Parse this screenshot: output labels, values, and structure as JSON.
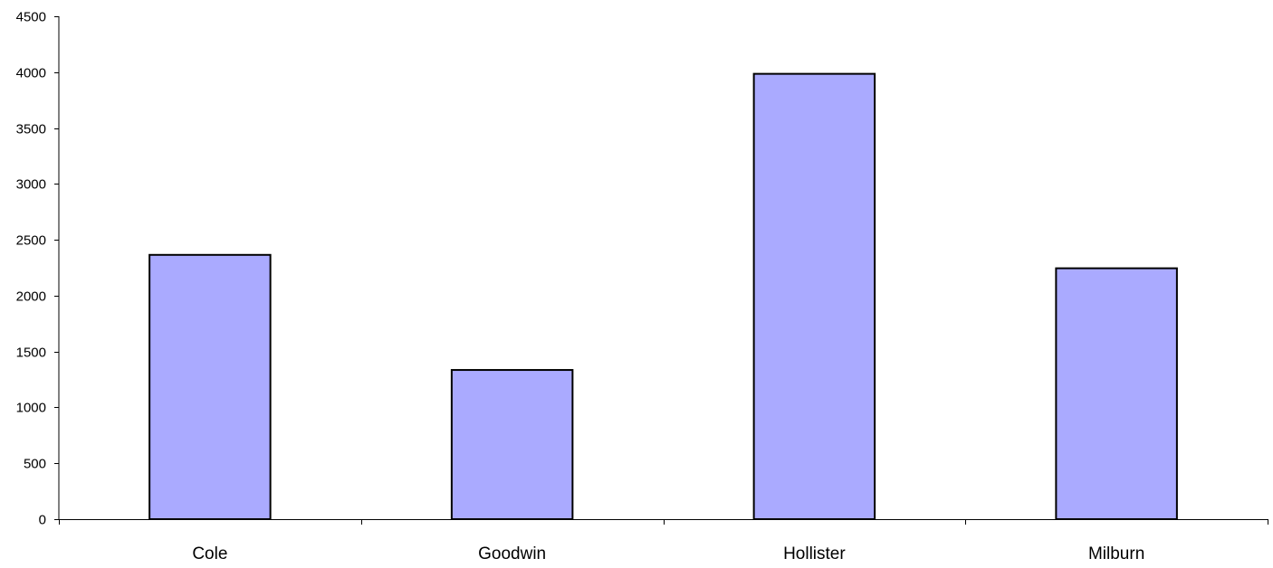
{
  "chart_data": {
    "type": "bar",
    "categories": [
      "Cole",
      "Goodwin",
      "Hollister",
      "Milburn"
    ],
    "values": [
      2365,
      1335,
      3985,
      2245
    ],
    "ylim": [
      0,
      4500
    ],
    "y_ticks": [
      0,
      500,
      1000,
      1500,
      2000,
      2500,
      3000,
      3500,
      4000,
      4500
    ],
    "y_tick_labels": [
      "0",
      "500",
      "1000",
      "1500",
      "2000",
      "2500",
      "3000",
      "3500",
      "4000",
      "4500"
    ],
    "grid": false,
    "legend": "none",
    "colors": {
      "bar_fill": "#aaaaff",
      "bar_stroke": "#000000",
      "axis": "#000000"
    }
  }
}
